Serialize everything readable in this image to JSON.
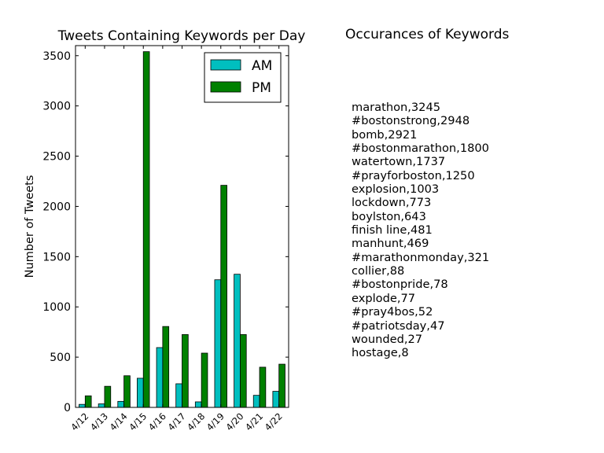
{
  "chart_data": {
    "type": "bar",
    "title": "Tweets Containing Keywords per Day",
    "xlabel": "",
    "ylabel": "Number of Tweets",
    "categories": [
      "4/12",
      "4/13",
      "4/14",
      "4/15",
      "4/16",
      "4/17",
      "4/18",
      "4/19",
      "4/20",
      "4/21",
      "4/22"
    ],
    "series": [
      {
        "name": "AM",
        "color": "#00bfbf",
        "values": [
          30,
          35,
          60,
          290,
          595,
          235,
          55,
          1270,
          1325,
          120,
          160
        ]
      },
      {
        "name": "PM",
        "color": "#008000",
        "values": [
          115,
          210,
          315,
          3540,
          805,
          725,
          540,
          2210,
          725,
          400,
          430
        ]
      }
    ],
    "ylim": [
      0,
      3600
    ],
    "yticks": [
      0,
      500,
      1000,
      1500,
      2000,
      2500,
      3000,
      3500
    ],
    "legend_position": "top-right",
    "grid": false
  },
  "keywords_panel": {
    "title": "Occurances of Keywords",
    "items": [
      "marathon,3245",
      "#bostonstrong,2948",
      "bomb,2921",
      "#bostonmarathon,1800",
      "watertown,1737",
      "#prayforboston,1250",
      "explosion,1003",
      "lockdown,773",
      "boylston,643",
      "finish line,481",
      "manhunt,469",
      "#marathonmonday,321",
      "collier,88",
      "#bostonpride,78",
      "explode,77",
      "#pray4bos,52",
      "#patriotsday,47",
      "wounded,27",
      "hostage,8"
    ]
  }
}
